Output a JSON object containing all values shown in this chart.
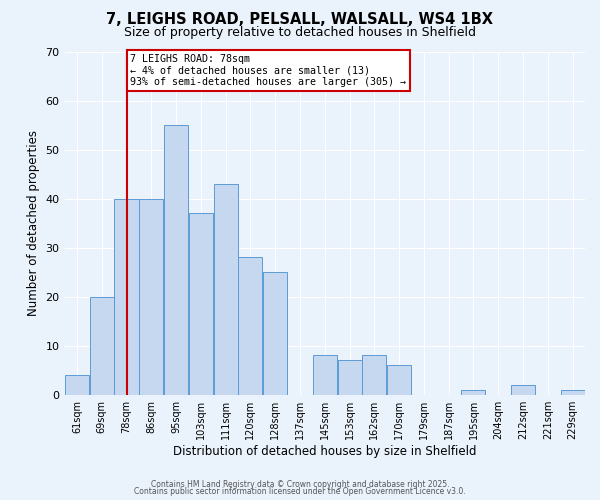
{
  "title_line1": "7, LEIGHS ROAD, PELSALL, WALSALL, WS4 1BX",
  "title_line2": "Size of property relative to detached houses in Shelfield",
  "xlabel": "Distribution of detached houses by size in Shelfield",
  "ylabel": "Number of detached properties",
  "bar_labels": [
    "61sqm",
    "69sqm",
    "78sqm",
    "86sqm",
    "95sqm",
    "103sqm",
    "111sqm",
    "120sqm",
    "128sqm",
    "137sqm",
    "145sqm",
    "153sqm",
    "162sqm",
    "170sqm",
    "179sqm",
    "187sqm",
    "195sqm",
    "204sqm",
    "212sqm",
    "221sqm",
    "229sqm"
  ],
  "bar_values": [
    4,
    20,
    40,
    40,
    55,
    37,
    43,
    28,
    25,
    0,
    8,
    7,
    8,
    6,
    0,
    0,
    1,
    0,
    2,
    0,
    1
  ],
  "bar_color": "#c5d8f0",
  "bar_edge_color": "#5b9bd5",
  "background_color": "#eaf2fc",
  "grid_color": "#ffffff",
  "vline_x_idx": 2,
  "vline_color": "#cc0000",
  "annotation_title": "7 LEIGHS ROAD: 78sqm",
  "annotation_line2": "← 4% of detached houses are smaller (13)",
  "annotation_line3": "93% of semi-detached houses are larger (305) →",
  "annotation_box_color": "#ffffff",
  "annotation_box_edge": "#cc0000",
  "ylim": [
    0,
    70
  ],
  "yticks": [
    0,
    10,
    20,
    30,
    40,
    50,
    60,
    70
  ],
  "footnote1": "Contains HM Land Registry data © Crown copyright and database right 2025.",
  "footnote2": "Contains public sector information licensed under the Open Government Licence v3.0."
}
